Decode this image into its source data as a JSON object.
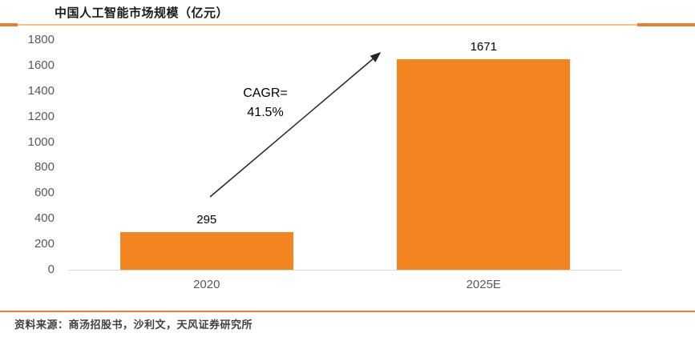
{
  "title": "中国人工智能市场规模（亿元）",
  "source_note": "资料来源：商汤招股书，沙利文，天风证券研究所",
  "annotation": {
    "line1": "CAGR=",
    "line2": "41.5%"
  },
  "colors": {
    "bar": "#F28422",
    "accent_dark": "#ED7D31",
    "accent_light": "#FBC08A",
    "axis_text": "#595959",
    "baseline": "#D9D9D9",
    "arrow": "#262626"
  },
  "chart_data": {
    "type": "bar",
    "title": "中国人工智能市场规模（亿元）",
    "categories": [
      "2020",
      "2025E"
    ],
    "values": [
      295,
      1671
    ],
    "xlabel": "",
    "ylabel": "",
    "ylim": [
      0,
      1800
    ],
    "yticks": [
      1800,
      1600,
      1400,
      1200,
      1000,
      800,
      600,
      400,
      200,
      0
    ],
    "grid": false,
    "legend": "none",
    "annotation": "CAGR=41.5%",
    "bar_color": "#F28422"
  }
}
